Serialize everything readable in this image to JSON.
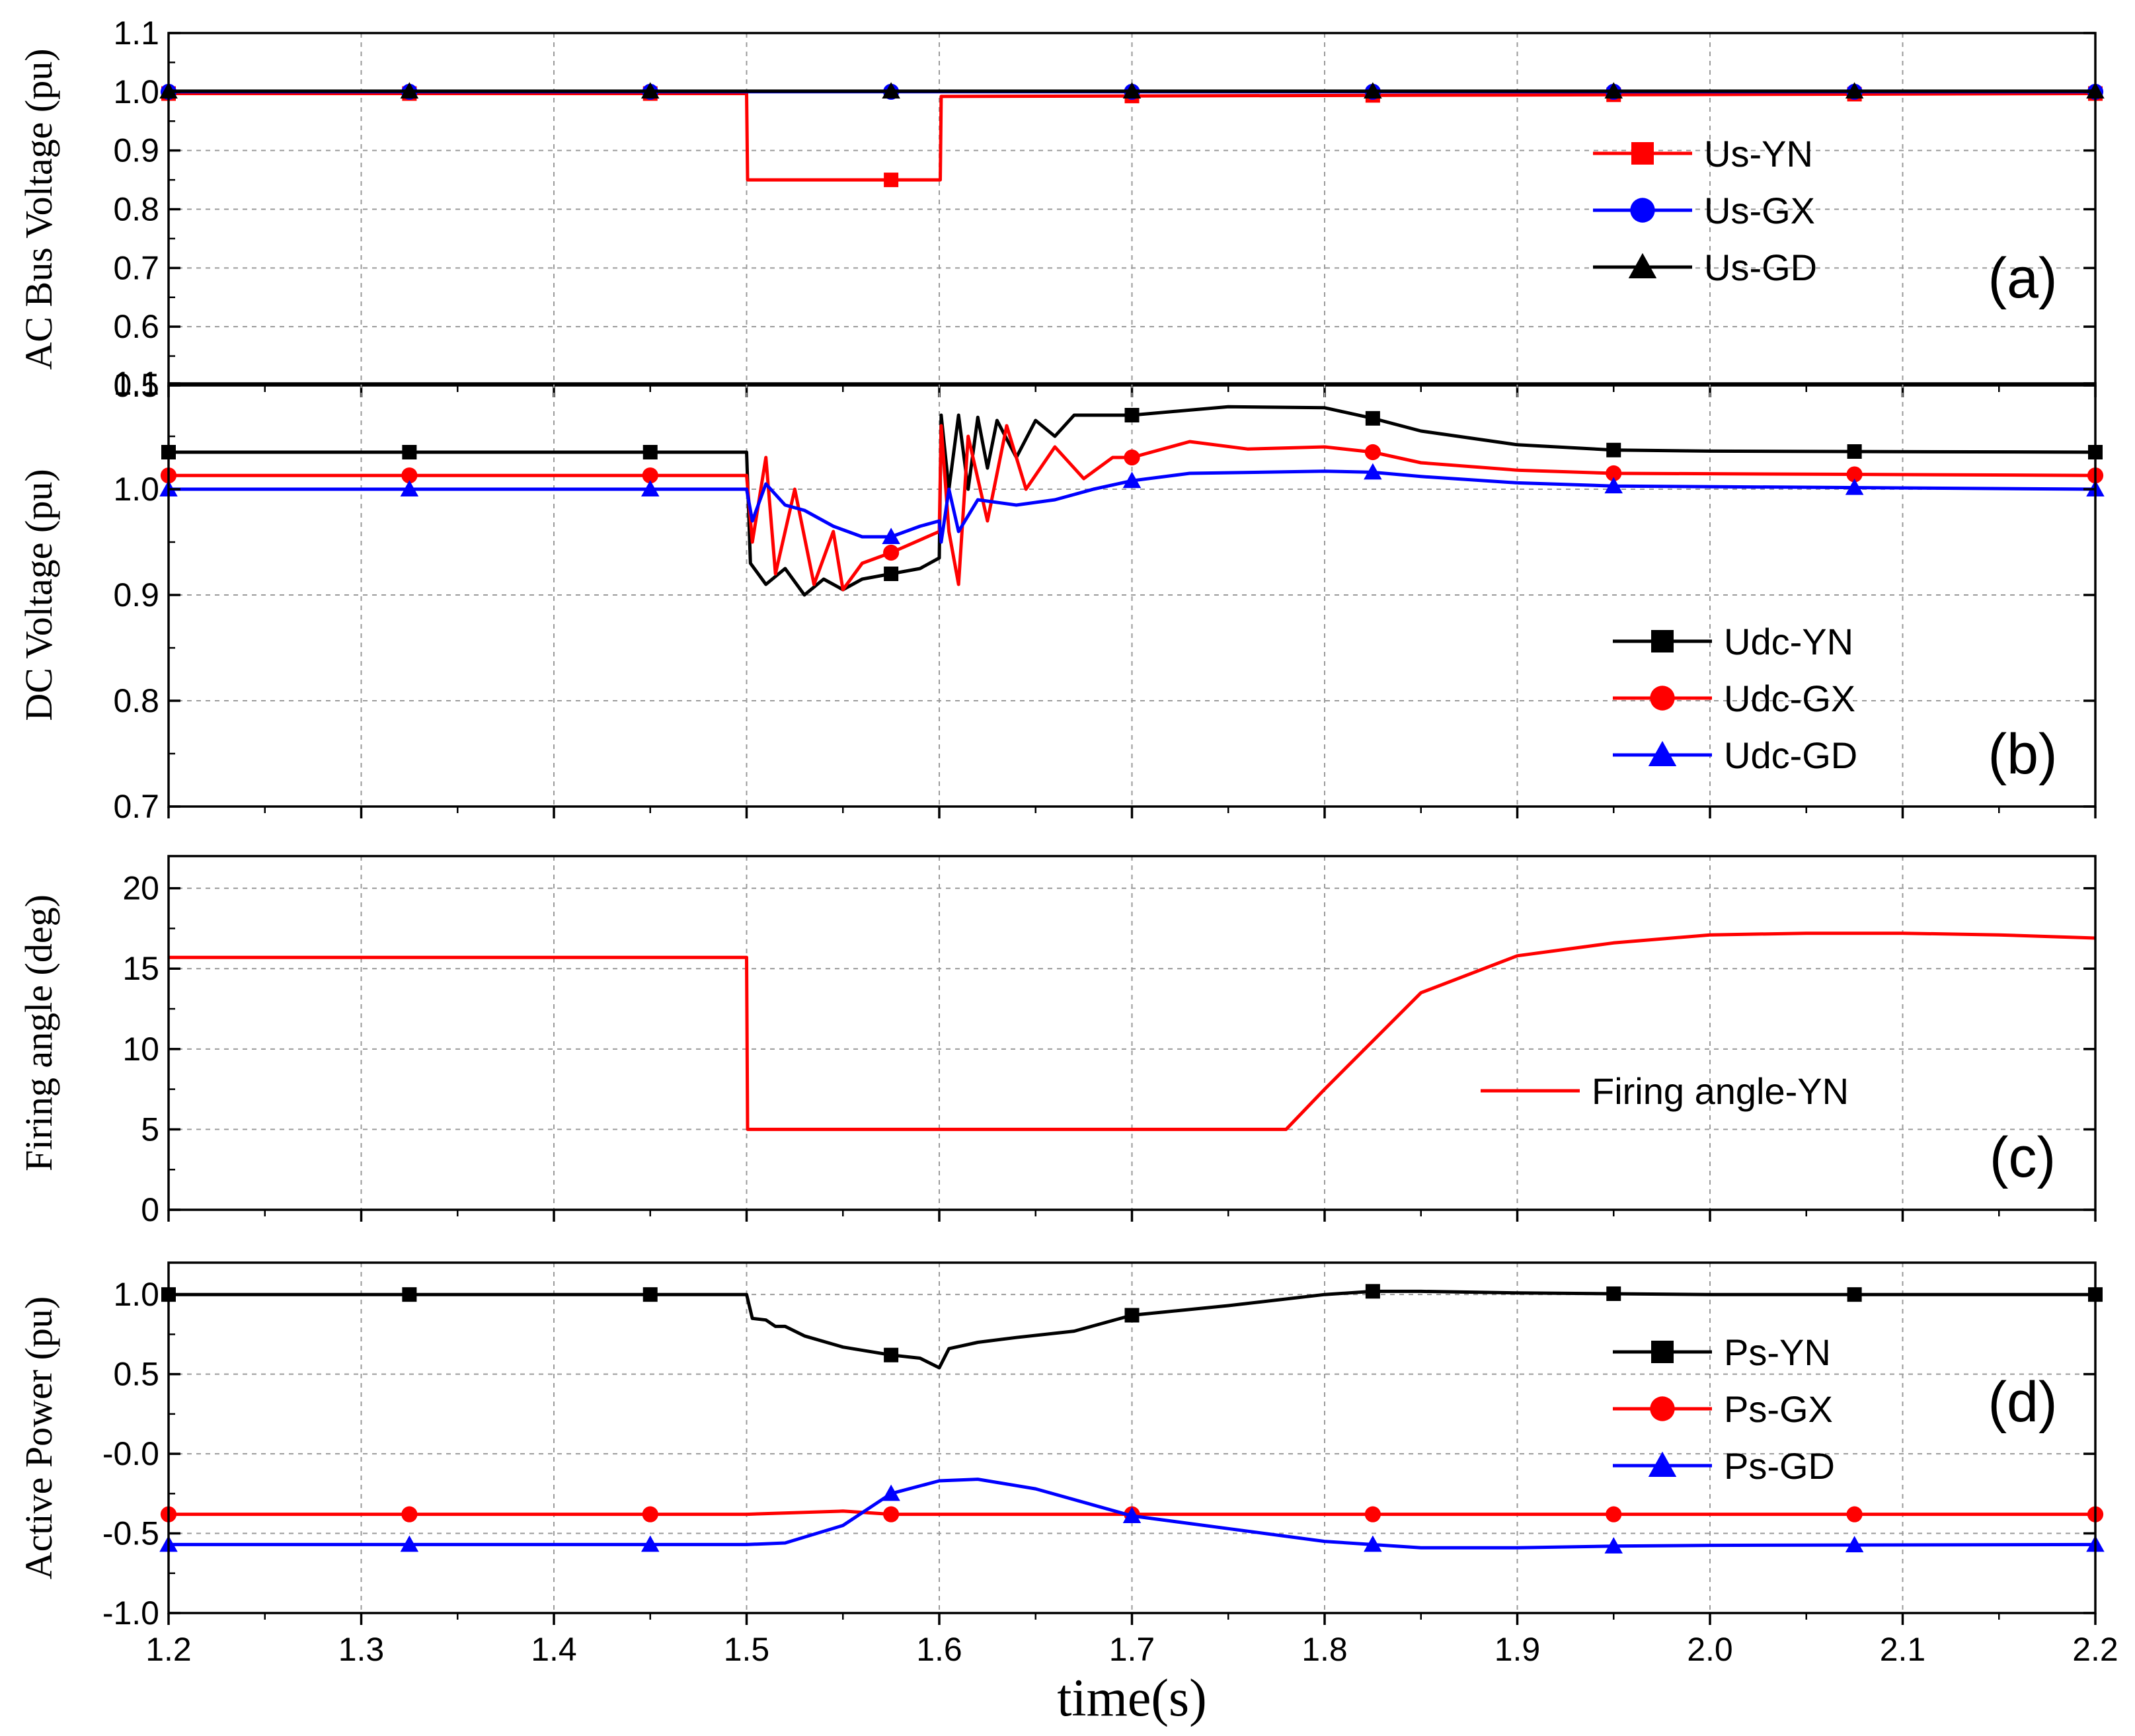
{
  "chart_data": [
    {
      "type": "line",
      "panel_label": "(a)",
      "ylabel": "AC Bus Voltage (pu)",
      "ylim": [
        0.5,
        1.1
      ],
      "yticks": [
        "0.5",
        "0.6",
        "0.7",
        "0.8",
        "0.9",
        "1.0",
        "1.1"
      ],
      "legend_position": "center-right",
      "series": [
        {
          "name": "Us-YN",
          "color": "#ff0000",
          "marker": "square",
          "points": [
            [
              1.2,
              0.997
            ],
            [
              1.5,
              0.997
            ],
            [
              1.5005,
              0.85
            ],
            [
              1.6005,
              0.85
            ],
            [
              1.601,
              0.992
            ],
            [
              2.2,
              0.997
            ]
          ]
        },
        {
          "name": "Us-GX",
          "color": "#0000ff",
          "marker": "circle",
          "points": [
            [
              1.2,
              1.0
            ],
            [
              2.2,
              1.0
            ]
          ]
        },
        {
          "name": "Us-GD",
          "color": "#000000",
          "marker": "triangle",
          "points": [
            [
              1.2,
              1.001
            ],
            [
              2.2,
              1.001
            ]
          ]
        }
      ]
    },
    {
      "type": "line",
      "panel_label": "(b)",
      "ylabel": "DC Voltage (pu)",
      "ylim": [
        0.7,
        1.1
      ],
      "yticks": [
        "0.7",
        "0.8",
        "0.9",
        "1.0",
        "1.1"
      ],
      "legend_position": "bottom-right",
      "series": [
        {
          "name": "Udc-YN",
          "color": "#000000",
          "marker": "square",
          "points": [
            [
              1.2,
              1.035
            ],
            [
              1.5,
              1.035
            ],
            [
              1.502,
              0.93
            ],
            [
              1.51,
              0.91
            ],
            [
              1.52,
              0.925
            ],
            [
              1.53,
              0.9
            ],
            [
              1.54,
              0.915
            ],
            [
              1.55,
              0.905
            ],
            [
              1.56,
              0.915
            ],
            [
              1.575,
              0.92
            ],
            [
              1.59,
              0.925
            ],
            [
              1.6,
              0.935
            ],
            [
              1.601,
              1.07
            ],
            [
              1.605,
              1.0
            ],
            [
              1.61,
              1.07
            ],
            [
              1.615,
              1.0
            ],
            [
              1.62,
              1.068
            ],
            [
              1.625,
              1.02
            ],
            [
              1.63,
              1.065
            ],
            [
              1.64,
              1.03
            ],
            [
              1.65,
              1.065
            ],
            [
              1.66,
              1.05
            ],
            [
              1.67,
              1.07
            ],
            [
              1.7,
              1.07
            ],
            [
              1.75,
              1.078
            ],
            [
              1.8,
              1.077
            ],
            [
              1.825,
              1.067
            ],
            [
              1.85,
              1.055
            ],
            [
              1.9,
              1.042
            ],
            [
              1.95,
              1.037
            ],
            [
              2.0,
              1.036
            ],
            [
              2.2,
              1.035
            ]
          ]
        },
        {
          "name": "Udc-GX",
          "color": "#ff0000",
          "marker": "circle",
          "points": [
            [
              1.2,
              1.013
            ],
            [
              1.5,
              1.013
            ],
            [
              1.503,
              0.95
            ],
            [
              1.51,
              1.03
            ],
            [
              1.515,
              0.92
            ],
            [
              1.525,
              1.0
            ],
            [
              1.535,
              0.91
            ],
            [
              1.545,
              0.96
            ],
            [
              1.55,
              0.905
            ],
            [
              1.56,
              0.93
            ],
            [
              1.575,
              0.94
            ],
            [
              1.6,
              0.96
            ],
            [
              1.601,
              1.06
            ],
            [
              1.605,
              0.96
            ],
            [
              1.61,
              0.91
            ],
            [
              1.615,
              1.05
            ],
            [
              1.625,
              0.97
            ],
            [
              1.635,
              1.06
            ],
            [
              1.645,
              1.0
            ],
            [
              1.66,
              1.04
            ],
            [
              1.675,
              1.01
            ],
            [
              1.69,
              1.03
            ],
            [
              1.7,
              1.03
            ],
            [
              1.73,
              1.045
            ],
            [
              1.76,
              1.038
            ],
            [
              1.8,
              1.04
            ],
            [
              1.825,
              1.035
            ],
            [
              1.85,
              1.025
            ],
            [
              1.9,
              1.018
            ],
            [
              1.95,
              1.015
            ],
            [
              2.2,
              1.013
            ]
          ]
        },
        {
          "name": "Udc-GD",
          "color": "#0000ff",
          "marker": "triangle",
          "points": [
            [
              1.2,
              1.0
            ],
            [
              1.5,
              1.0
            ],
            [
              1.503,
              0.97
            ],
            [
              1.51,
              1.005
            ],
            [
              1.52,
              0.985
            ],
            [
              1.53,
              0.98
            ],
            [
              1.545,
              0.965
            ],
            [
              1.56,
              0.955
            ],
            [
              1.575,
              0.955
            ],
            [
              1.59,
              0.965
            ],
            [
              1.6,
              0.97
            ],
            [
              1.601,
              0.95
            ],
            [
              1.605,
              1.0
            ],
            [
              1.61,
              0.96
            ],
            [
              1.62,
              0.99
            ],
            [
              1.64,
              0.985
            ],
            [
              1.66,
              0.99
            ],
            [
              1.68,
              1.0
            ],
            [
              1.7,
              1.008
            ],
            [
              1.73,
              1.015
            ],
            [
              1.8,
              1.017
            ],
            [
              1.825,
              1.016
            ],
            [
              1.85,
              1.012
            ],
            [
              1.9,
              1.006
            ],
            [
              1.95,
              1.003
            ],
            [
              2.2,
              1.0
            ]
          ]
        }
      ]
    },
    {
      "type": "line",
      "panel_label": "(c)",
      "ylabel": "Firing angle (deg)",
      "ylim": [
        0,
        22
      ],
      "yticks": [
        "0",
        "5",
        "10",
        "15",
        "20"
      ],
      "legend_position": "center-right",
      "series": [
        {
          "name": "Firing angle-YN",
          "color": "#ff0000",
          "marker": "none",
          "points": [
            [
              1.2,
              15.7
            ],
            [
              1.5,
              15.7
            ],
            [
              1.5005,
              5.0
            ],
            [
              1.78,
              5.0
            ],
            [
              1.8,
              7.5
            ],
            [
              1.85,
              13.5
            ],
            [
              1.9,
              15.8
            ],
            [
              1.95,
              16.6
            ],
            [
              2.0,
              17.1
            ],
            [
              2.05,
              17.2
            ],
            [
              2.1,
              17.2
            ],
            [
              2.15,
              17.1
            ],
            [
              2.2,
              16.9
            ]
          ]
        }
      ]
    },
    {
      "type": "line",
      "panel_label": "(d)",
      "ylabel": "Active Power (pu)",
      "xlabel": "time(s)",
      "ylim": [
        -1.0,
        1.2
      ],
      "yticks": [
        "-1.0",
        "-0.5",
        "-0.0",
        "0.5",
        "1.0"
      ],
      "xlim": [
        1.2,
        2.2
      ],
      "xticks": [
        "1.2",
        "1.3",
        "1.4",
        "1.5",
        "1.6",
        "1.7",
        "1.8",
        "1.9",
        "2.0",
        "2.1",
        "2.2"
      ],
      "legend_position": "center-right",
      "series": [
        {
          "name": "Ps-YN",
          "color": "#000000",
          "marker": "square",
          "points": [
            [
              1.2,
              1.0
            ],
            [
              1.5,
              1.0
            ],
            [
              1.503,
              0.85
            ],
            [
              1.51,
              0.84
            ],
            [
              1.515,
              0.8
            ],
            [
              1.52,
              0.8
            ],
            [
              1.53,
              0.74
            ],
            [
              1.55,
              0.67
            ],
            [
              1.575,
              0.62
            ],
            [
              1.59,
              0.6
            ],
            [
              1.6,
              0.54
            ],
            [
              1.605,
              0.66
            ],
            [
              1.62,
              0.7
            ],
            [
              1.64,
              0.73
            ],
            [
              1.67,
              0.77
            ],
            [
              1.7,
              0.87
            ],
            [
              1.75,
              0.93
            ],
            [
              1.8,
              1.0
            ],
            [
              1.825,
              1.02
            ],
            [
              1.85,
              1.02
            ],
            [
              1.9,
              1.01
            ],
            [
              2.0,
              1.0
            ],
            [
              2.2,
              1.0
            ]
          ]
        },
        {
          "name": "Ps-GX",
          "color": "#ff0000",
          "marker": "circle",
          "points": [
            [
              1.2,
              -0.38
            ],
            [
              1.5,
              -0.38
            ],
            [
              1.55,
              -0.36
            ],
            [
              1.575,
              -0.38
            ],
            [
              1.65,
              -0.38
            ],
            [
              1.7,
              -0.38
            ],
            [
              1.8,
              -0.38
            ],
            [
              2.2,
              -0.38
            ]
          ]
        },
        {
          "name": "Ps-GD",
          "color": "#0000ff",
          "marker": "triangle",
          "points": [
            [
              1.2,
              -0.57
            ],
            [
              1.5,
              -0.57
            ],
            [
              1.52,
              -0.56
            ],
            [
              1.55,
              -0.45
            ],
            [
              1.575,
              -0.25
            ],
            [
              1.6,
              -0.17
            ],
            [
              1.62,
              -0.16
            ],
            [
              1.65,
              -0.22
            ],
            [
              1.7,
              -0.39
            ],
            [
              1.75,
              -0.47
            ],
            [
              1.8,
              -0.55
            ],
            [
              1.85,
              -0.59
            ],
            [
              1.9,
              -0.59
            ],
            [
              1.95,
              -0.58
            ],
            [
              2.0,
              -0.575
            ],
            [
              2.2,
              -0.57
            ]
          ]
        }
      ]
    }
  ]
}
